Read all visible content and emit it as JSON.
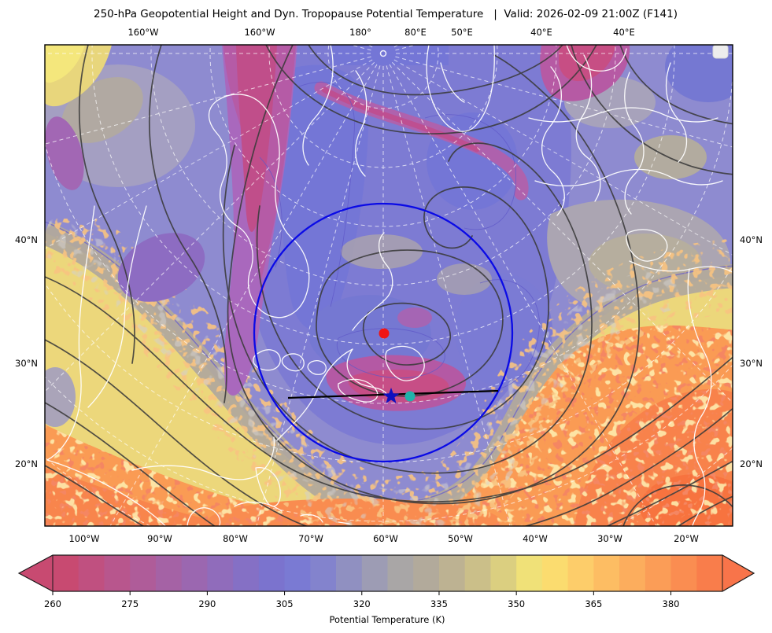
{
  "title": "250-hPa Geopotential Height and Dyn. Tropopause Potential Temperature   |  Valid: 2026-02-09 21:00Z (F141)",
  "map": {
    "top_labels": [
      "160°W",
      "160°W",
      "180°",
      "80°E",
      "50°E",
      "40°E",
      "40°E"
    ],
    "bottom_labels": [
      "100°W",
      "90°W",
      "80°W",
      "70°W",
      "60°W",
      "50°W",
      "40°W",
      "30°W",
      "20°W"
    ],
    "left_labels": [
      "40°N",
      "30°N",
      "20°N"
    ],
    "right_labels": [
      "40°N",
      "30°N",
      "20°N"
    ],
    "annotations": {
      "range_ring": {
        "shape": "circle",
        "color": "#0a0ae6"
      },
      "markers": [
        {
          "name": "red-dot",
          "shape": "circle",
          "color": "#f01414"
        },
        {
          "name": "blue-star",
          "shape": "star",
          "color": "#0f0fbe"
        },
        {
          "name": "teal-dot",
          "shape": "circle",
          "color": "#20b2aa"
        },
        {
          "name": "cross-section-line",
          "shape": "line",
          "color": "#000000"
        }
      ]
    }
  },
  "colorbar": {
    "label": "Potential Temperature (K)",
    "ticks": [
      "260",
      "275",
      "290",
      "305",
      "320",
      "335",
      "350",
      "365",
      "380"
    ],
    "tick_values": [
      260,
      275,
      290,
      305,
      320,
      335,
      350,
      365,
      380
    ],
    "value_min": 260,
    "value_max": 390,
    "segment_colors": [
      "#c84a71",
      "#c05080",
      "#b8568d",
      "#af5c99",
      "#a562a5",
      "#9b67b0",
      "#906cbb",
      "#8570c5",
      "#7b73ce",
      "#7a7ad3",
      "#8383cd",
      "#9090c1",
      "#9d9cb4",
      "#a9a6a6",
      "#b2aa9b",
      "#bdb292",
      "#cbbf89",
      "#dbcf80",
      "#f0e178",
      "#fbdc6f",
      "#fdcd6a",
      "#fdbd63",
      "#fcad5d",
      "#fb9d57",
      "#fa8d51",
      "#f97d4b"
    ],
    "under_color": "#c84a71",
    "over_color": "#f8744a"
  },
  "chart_data": {
    "type": "heatmap",
    "title": "250-hPa Geopotential Height and Dyn. Tropopause Potential Temperature",
    "valid_time": "2026-02-09 21:00Z",
    "forecast_hour": "F141",
    "field": "Dynamic tropopause potential temperature (K), filled contours",
    "overlay": "250-hPa geopotential height, black contour lines",
    "basemap": "white coastlines and borders with dashed white graticule, polar-style projection",
    "colorbar_label": "Potential Temperature (K)",
    "colorbar_tick_values": [
      260,
      275,
      290,
      305,
      320,
      335,
      350,
      365,
      380
    ],
    "colorbar_range": [
      260,
      390
    ],
    "x_ticks_bottom": [
      "100°W",
      "90°W",
      "80°W",
      "70°W",
      "60°W",
      "50°W",
      "40°W",
      "30°W",
      "20°W"
    ],
    "x_ticks_top": [
      "160°W",
      "160°W",
      "180°",
      "80°E",
      "50°E",
      "40°E",
      "40°E"
    ],
    "y_ticks": [
      "40°N",
      "30°N",
      "20°N"
    ],
    "legend_position": "bottom horizontal colorbar with under/over arrow extensions",
    "annotations": [
      "large blue range ring centered on trough near 60°W / 35°N",
      "red dot marker at ring center",
      "dark blue star marker south of Newfoundland",
      "teal dot marker just east of the star",
      "black cross-section line spanning roughly 73°W to 43°W"
    ]
  }
}
